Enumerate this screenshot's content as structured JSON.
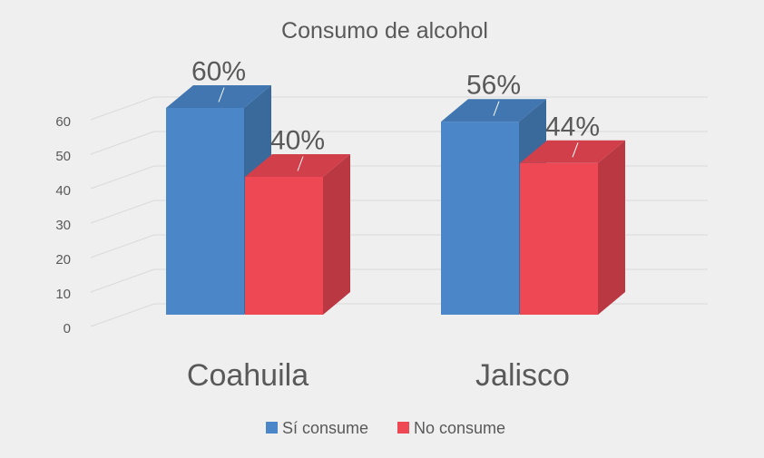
{
  "chart_data": {
    "type": "bar",
    "title": "Consumo de alcohol",
    "categories": [
      "Coahuila",
      "Jalisco"
    ],
    "series": [
      {
        "name": "Sí consume",
        "values": [
          60,
          56
        ],
        "labels": [
          "60%",
          "56%"
        ],
        "color": "#4a86c8"
      },
      {
        "name": "No consume",
        "values": [
          40,
          44
        ],
        "labels": [
          "40%",
          "44%"
        ],
        "color": "#ee4854"
      }
    ],
    "y_ticks": [
      "0",
      "10",
      "20",
      "30",
      "40",
      "50",
      "60"
    ],
    "ylim": [
      0,
      60
    ],
    "grid": true,
    "legend_position": "bottom",
    "three_d": true
  }
}
